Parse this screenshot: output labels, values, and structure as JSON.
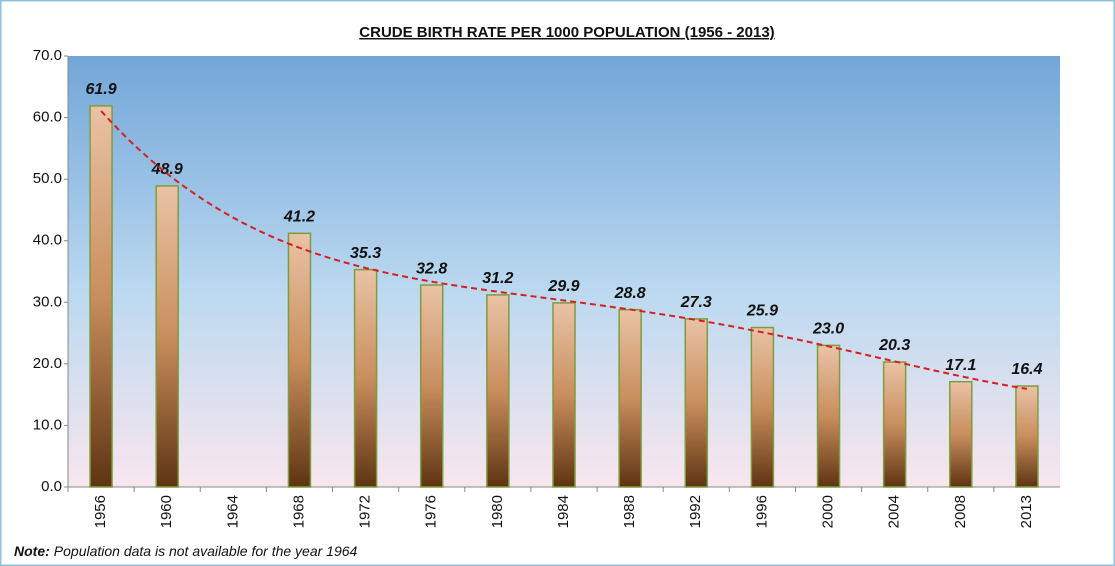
{
  "chart_data": {
    "type": "bar",
    "title": "CRUDE BIRTH RATE PER 1000 POPULATION (1956 - 2013)",
    "categories": [
      "1956",
      "1960",
      "1964",
      "1968",
      "1972",
      "1976",
      "1980",
      "1984",
      "1988",
      "1992",
      "1996",
      "2000",
      "2004",
      "2008",
      "2013"
    ],
    "values": [
      61.9,
      48.9,
      null,
      41.2,
      35.3,
      32.8,
      31.2,
      29.9,
      28.8,
      27.3,
      25.9,
      23,
      20.3,
      17.1,
      16.4
    ],
    "value_labels": [
      "61.9",
      "48.9",
      null,
      "41.2",
      "35.3",
      "32.8",
      "31.2",
      "29.9",
      "28.8",
      "27.3",
      "25.9",
      "23.0",
      "20.3",
      "17.1",
      "16.4"
    ],
    "color": "#b97a4a",
    "trendline": true,
    "trendline_color": "#d62020",
    "ylim": [
      0,
      70
    ],
    "yticks": [
      {
        "value": 0,
        "label": "0.0"
      },
      {
        "value": 10,
        "label": "10.0"
      },
      {
        "value": 20,
        "label": "20.0"
      },
      {
        "value": 30,
        "label": "30.0"
      },
      {
        "value": 40,
        "label": "40.0"
      },
      {
        "value": 50,
        "label": "50.0"
      },
      {
        "value": 60,
        "label": "60.0"
      },
      {
        "value": 70,
        "label": "70.0"
      }
    ],
    "note_label": "Note:",
    "note": "Population data is not available for the year 1964"
  }
}
